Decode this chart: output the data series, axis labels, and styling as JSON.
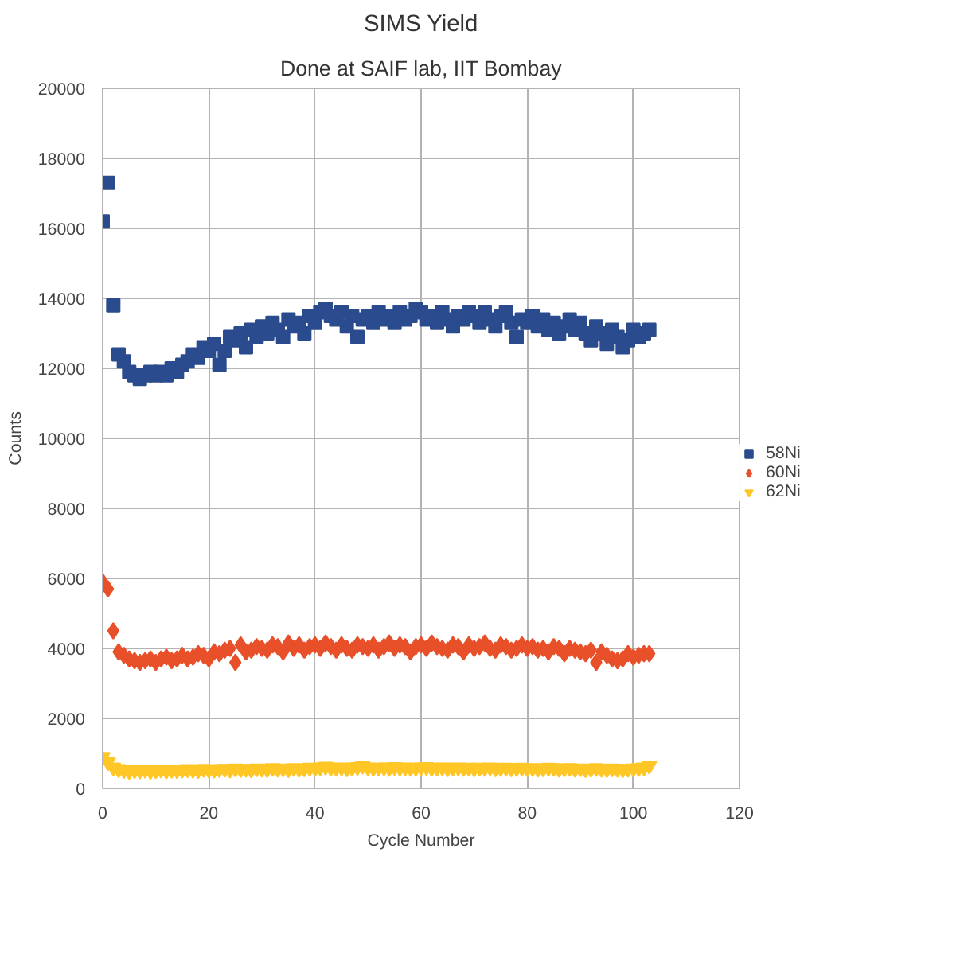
{
  "chart_data": {
    "type": "scatter",
    "title": "SIMS Yield",
    "subtitle": "Done at SAIF lab, IIT Bombay",
    "xlabel": "Cycle Number",
    "ylabel": "Counts",
    "xlim": [
      0,
      120
    ],
    "xticks": [
      0,
      20,
      40,
      60,
      80,
      100,
      120
    ],
    "ylim": [
      0,
      20000
    ],
    "yticks": [
      0,
      2000,
      4000,
      6000,
      8000,
      10000,
      12000,
      14000,
      16000,
      18000,
      20000
    ],
    "grid": true,
    "legend": "right",
    "x": [
      0,
      1,
      2,
      3,
      4,
      5,
      6,
      7,
      8,
      9,
      10,
      11,
      12,
      13,
      14,
      15,
      16,
      17,
      18,
      19,
      20,
      21,
      22,
      23,
      24,
      25,
      26,
      27,
      28,
      29,
      30,
      31,
      32,
      33,
      34,
      35,
      36,
      37,
      38,
      39,
      40,
      41,
      42,
      43,
      44,
      45,
      46,
      47,
      48,
      49,
      50,
      51,
      52,
      53,
      54,
      55,
      56,
      57,
      58,
      59,
      60,
      61,
      62,
      63,
      64,
      65,
      66,
      67,
      68,
      69,
      70,
      71,
      72,
      73,
      74,
      75,
      76,
      77,
      78,
      79,
      80,
      81,
      82,
      83,
      84,
      85,
      86,
      87,
      88,
      89,
      90,
      91,
      92,
      93,
      94,
      95,
      96,
      97,
      98,
      99,
      100,
      101,
      102,
      103
    ],
    "series": [
      {
        "name": "58Ni",
        "color": "#2a4b8d",
        "marker": "square",
        "values": [
          16200,
          17300,
          13800,
          12400,
          12200,
          11900,
          11800,
          11700,
          11800,
          11900,
          11800,
          11900,
          11800,
          12000,
          11900,
          12100,
          12200,
          12400,
          12300,
          12600,
          12500,
          12700,
          12100,
          12500,
          12900,
          12800,
          13000,
          12600,
          13100,
          12900,
          13200,
          13000,
          13300,
          13100,
          12900,
          13400,
          13200,
          13300,
          13000,
          13500,
          13300,
          13600,
          13700,
          13500,
          13400,
          13600,
          13200,
          13500,
          12900,
          13400,
          13500,
          13300,
          13600,
          13400,
          13500,
          13300,
          13600,
          13400,
          13500,
          13700,
          13600,
          13400,
          13500,
          13300,
          13600,
          13400,
          13200,
          13500,
          13400,
          13600,
          13500,
          13300,
          13600,
          13400,
          13200,
          13500,
          13600,
          13300,
          12900,
          13400,
          13300,
          13500,
          13200,
          13400,
          13100,
          13300,
          13000,
          13200,
          13400,
          13100,
          13300,
          13000,
          12800,
          13200,
          13000,
          12700,
          13100,
          12900,
          12600,
          12800,
          13100,
          12900,
          13000,
          13100
        ]
      },
      {
        "name": "60Ni",
        "color": "#e8502a",
        "marker": "diamond",
        "values": [
          5900,
          5700,
          4500,
          3900,
          3800,
          3700,
          3650,
          3600,
          3650,
          3700,
          3600,
          3700,
          3750,
          3650,
          3700,
          3800,
          3700,
          3750,
          3850,
          3800,
          3700,
          3900,
          3850,
          3950,
          4000,
          3600,
          4100,
          3900,
          3950,
          4050,
          4000,
          3950,
          4100,
          4050,
          3900,
          4150,
          4000,
          4100,
          3950,
          4050,
          4100,
          4000,
          4150,
          4050,
          3950,
          4100,
          4000,
          3950,
          4100,
          4050,
          4000,
          4100,
          3950,
          4050,
          4150,
          4000,
          4100,
          4050,
          3900,
          4050,
          4100,
          4000,
          4150,
          4050,
          4000,
          3950,
          4100,
          4050,
          3900,
          4100,
          4000,
          4050,
          4150,
          4000,
          3950,
          4100,
          4050,
          3950,
          4000,
          4100,
          4000,
          4050,
          3950,
          4000,
          3900,
          4050,
          4000,
          3850,
          4000,
          3950,
          3900,
          3850,
          3950,
          3600,
          3900,
          3800,
          3700,
          3650,
          3700,
          3850,
          3750,
          3800,
          3850,
          3850
        ]
      },
      {
        "name": "62Ni",
        "color": "#ffc726",
        "marker": "triangle",
        "values": [
          900,
          750,
          600,
          550,
          520,
          500,
          520,
          510,
          530,
          500,
          520,
          540,
          510,
          530,
          520,
          540,
          550,
          530,
          520,
          560,
          540,
          530,
          550,
          560,
          540,
          570,
          550,
          560,
          540,
          570,
          560,
          550,
          580,
          560,
          570,
          550,
          580,
          560,
          570,
          590,
          580,
          600,
          620,
          590,
          580,
          600,
          570,
          590,
          610,
          650,
          600,
          580,
          590,
          600,
          580,
          610,
          590,
          600,
          580,
          590,
          600,
          610,
          580,
          590,
          600,
          570,
          590,
          600,
          580,
          590,
          570,
          590,
          580,
          600,
          570,
          580,
          590,
          570,
          580,
          590,
          570,
          580,
          560,
          570,
          590,
          580,
          560,
          570,
          580,
          560,
          570,
          550,
          560,
          580,
          560,
          550,
          570,
          560,
          550,
          560,
          570,
          580,
          600,
          650
        ]
      }
    ]
  }
}
